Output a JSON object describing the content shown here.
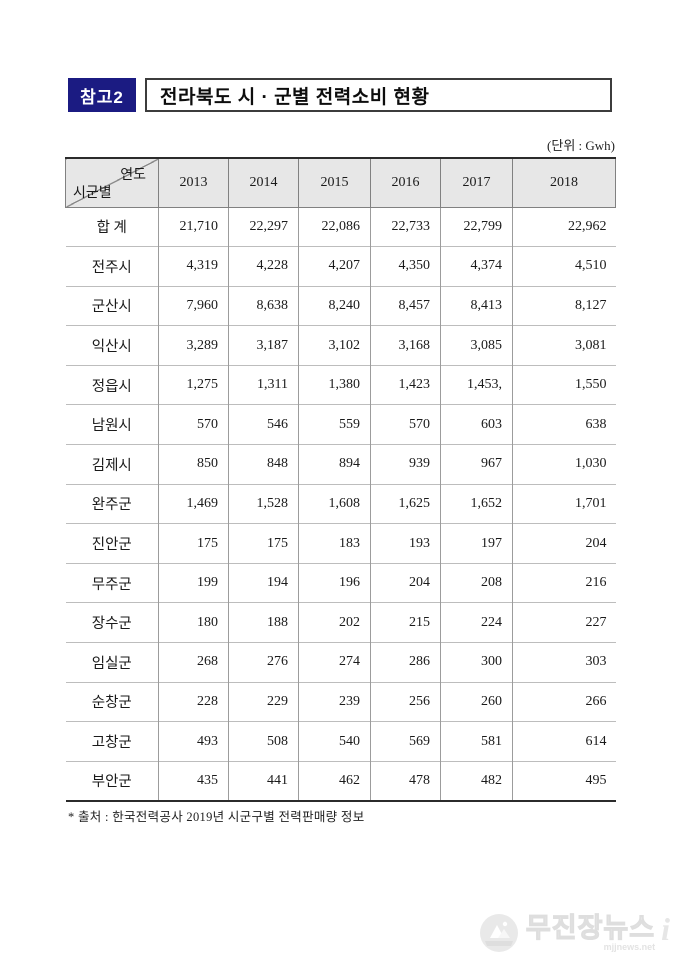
{
  "page": {
    "badge": "참고2",
    "title": "전라북도 시 · 군별 전력소비 현황",
    "unit_note": "(단위 : Gwh)",
    "source_note": "* 출처 : 한국전력공사 2019년 시군구별 전력판매량 정보"
  },
  "table": {
    "corner": {
      "top_right": "연도",
      "bottom_left": "시군별"
    },
    "years": [
      "2013",
      "2014",
      "2015",
      "2016",
      "2017",
      "2018"
    ],
    "rows": [
      {
        "label": "합 계",
        "values": [
          "21,710",
          "22,297",
          "22,086",
          "22,733",
          "22,799",
          "22,962"
        ]
      },
      {
        "label": "전주시",
        "values": [
          "4,319",
          "4,228",
          "4,207",
          "4,350",
          "4,374",
          "4,510"
        ]
      },
      {
        "label": "군산시",
        "values": [
          "7,960",
          "8,638",
          "8,240",
          "8,457",
          "8,413",
          "8,127"
        ]
      },
      {
        "label": "익산시",
        "values": [
          "3,289",
          "3,187",
          "3,102",
          "3,168",
          "3,085",
          "3,081"
        ]
      },
      {
        "label": "정읍시",
        "values": [
          "1,275",
          "1,311",
          "1,380",
          "1,423",
          "1,453,",
          "1,550"
        ]
      },
      {
        "label": "남원시",
        "values": [
          "570",
          "546",
          "559",
          "570",
          "603",
          "638"
        ]
      },
      {
        "label": "김제시",
        "values": [
          "850",
          "848",
          "894",
          "939",
          "967",
          "1,030"
        ]
      },
      {
        "label": "완주군",
        "values": [
          "1,469",
          "1,528",
          "1,608",
          "1,625",
          "1,652",
          "1,701"
        ]
      },
      {
        "label": "진안군",
        "values": [
          "175",
          "175",
          "183",
          "193",
          "197",
          "204"
        ]
      },
      {
        "label": "무주군",
        "values": [
          "199",
          "194",
          "196",
          "204",
          "208",
          "216"
        ]
      },
      {
        "label": "장수군",
        "values": [
          "180",
          "188",
          "202",
          "215",
          "224",
          "227"
        ]
      },
      {
        "label": "임실군",
        "values": [
          "268",
          "276",
          "274",
          "286",
          "300",
          "303"
        ]
      },
      {
        "label": "순창군",
        "values": [
          "228",
          "229",
          "239",
          "256",
          "260",
          "266"
        ]
      },
      {
        "label": "고창군",
        "values": [
          "493",
          "508",
          "540",
          "569",
          "581",
          "614"
        ]
      },
      {
        "label": "부안군",
        "values": [
          "435",
          "441",
          "462",
          "478",
          "482",
          "495"
        ]
      }
    ]
  },
  "watermark": {
    "name": "무진장뉴스",
    "site": "mjjnews.net",
    "suffix": "i"
  },
  "colors": {
    "badge_bg": "#1b1b82",
    "header_bg": "#e7e7e7",
    "border_dark": "#2b2b2b"
  }
}
